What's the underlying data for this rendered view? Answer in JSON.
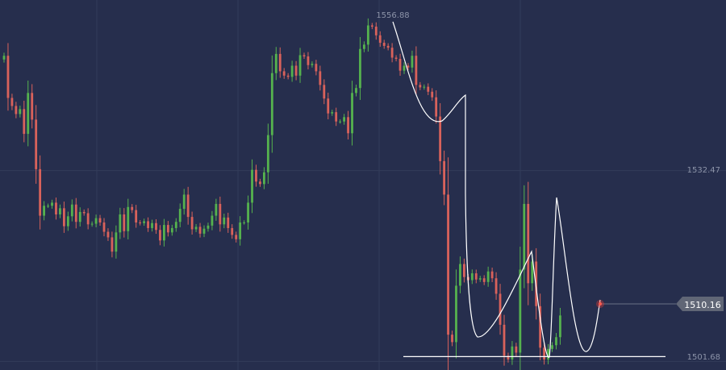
{
  "chart_data": {
    "type": "candlestick",
    "title": "",
    "xlabel": "",
    "ylabel": "",
    "ylim": [
      1500.3,
      1560.0
    ],
    "grid": true,
    "y_tick_labels": [
      "1532.47",
      "1501.68"
    ],
    "y_ticks": [
      1532.47,
      1501.68
    ],
    "current_price": 1510.16,
    "current_price_label": "1510.16",
    "peak_price": 1556.88,
    "peak_label": "1556.88",
    "support_level": 1501.68,
    "colors": {
      "background": "#262e4d",
      "bull": "#55b24e",
      "bear": "#d9625b",
      "grid": "#333c5a",
      "pattern": "#ffffff",
      "price_tag": "#606676"
    },
    "close": [
      1551.0,
      1544.2,
      1542.9,
      1541.6,
      1542.4,
      1538.4,
      1545.0,
      1540.7,
      1532.7,
      1525.2,
      1526.8,
      1526.8,
      1527.3,
      1525.4,
      1526.4,
      1523.5,
      1525.1,
      1527.0,
      1524.2,
      1525.8,
      1525.6,
      1523.8,
      1523.9,
      1524.8,
      1524.1,
      1522.6,
      1521.7,
      1519.4,
      1522.5,
      1525.4,
      1522.7,
      1526.6,
      1526.1,
      1524.1,
      1524.0,
      1524.3,
      1523.2,
      1524.0,
      1522.9,
      1521.2,
      1523.7,
      1522.5,
      1523.2,
      1524.2,
      1526.3,
      1528.6,
      1525.0,
      1523.0,
      1523.4,
      1522.3,
      1523.1,
      1523.6,
      1525.2,
      1527.1,
      1523.8,
      1524.9,
      1523.2,
      1522.1,
      1521.4,
      1524.1,
      1524.1,
      1527.3,
      1532.6,
      1530.7,
      1530.3,
      1532.2,
      1538.2,
      1548.2,
      1551.3,
      1548.5,
      1547.8,
      1547.6,
      1549.4,
      1547.8,
      1551.1,
      1550.9,
      1549.5,
      1549.7,
      1548.5,
      1546.3,
      1544.1,
      1541.7,
      1541.9,
      1540.4,
      1540.4,
      1541.1,
      1538.5,
      1545.0,
      1545.8,
      1552.1,
      1552.8,
      1555.9,
      1555.7,
      1554.3,
      1553.1,
      1552.6,
      1552.3,
      1550.7,
      1550.5,
      1548.6,
      1549.4,
      1549.1,
      1551.0,
      1546.3,
      1545.9,
      1546.0,
      1545.2,
      1544.3,
      1541.2,
      1534.0,
      1528.6,
      1506.0,
      1504.8,
      1513.9,
      1517.4,
      1515.3,
      1514.8,
      1515.9,
      1514.9,
      1515.1,
      1514.5,
      1516.2,
      1515.1,
      1512.6,
      1507.6,
      1502.6,
      1502.0,
      1504.1,
      1503.1,
      1516.5,
      1527.1,
      1514.3,
      1517.8,
      1510.6,
      1503.9,
      1502.0,
      1503.7,
      1504.3,
      1505.6,
      1509.1
    ],
    "open": [
      1550.4,
      1551.0,
      1544.2,
      1542.9,
      1541.6,
      1542.4,
      1538.4,
      1545.0,
      1540.7,
      1532.7,
      1525.2,
      1526.8,
      1526.8,
      1527.3,
      1525.4,
      1526.4,
      1523.5,
      1525.1,
      1527.0,
      1524.2,
      1525.8,
      1525.6,
      1523.8,
      1523.9,
      1524.8,
      1524.1,
      1522.6,
      1521.7,
      1519.4,
      1522.5,
      1525.4,
      1522.7,
      1526.6,
      1526.1,
      1524.1,
      1524.0,
      1524.3,
      1523.2,
      1524.0,
      1522.9,
      1521.2,
      1523.7,
      1522.5,
      1523.2,
      1524.2,
      1526.3,
      1528.6,
      1525.0,
      1523.0,
      1523.4,
      1522.3,
      1523.1,
      1523.6,
      1525.2,
      1527.1,
      1523.8,
      1524.9,
      1523.2,
      1522.1,
      1521.4,
      1524.1,
      1524.1,
      1527.3,
      1532.6,
      1530.7,
      1530.3,
      1532.2,
      1538.2,
      1548.2,
      1551.3,
      1548.5,
      1547.8,
      1547.6,
      1549.4,
      1547.8,
      1551.1,
      1550.9,
      1549.5,
      1549.7,
      1548.5,
      1546.3,
      1544.1,
      1541.7,
      1541.9,
      1540.4,
      1540.4,
      1541.1,
      1538.5,
      1545.0,
      1545.8,
      1552.1,
      1552.8,
      1555.9,
      1555.7,
      1554.3,
      1553.1,
      1552.6,
      1552.3,
      1550.7,
      1550.5,
      1548.6,
      1549.4,
      1549.1,
      1551.0,
      1546.3,
      1545.9,
      1546.0,
      1545.2,
      1544.3,
      1541.2,
      1534.0,
      1528.6,
      1506.0,
      1504.8,
      1513.9,
      1517.4,
      1515.3,
      1514.8,
      1515.9,
      1514.9,
      1515.1,
      1514.5,
      1516.2,
      1515.1,
      1512.6,
      1507.6,
      1502.6,
      1502.0,
      1504.1,
      1503.1,
      1516.5,
      1527.1,
      1514.3,
      1517.8,
      1510.6,
      1503.9,
      1502.0,
      1503.7,
      1504.3,
      1505.6
    ]
  }
}
